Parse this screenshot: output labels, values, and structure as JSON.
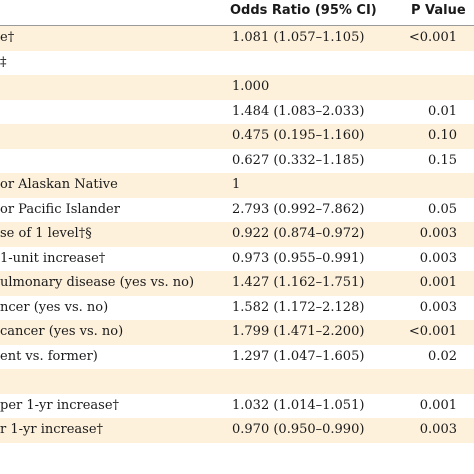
{
  "header": {
    "odds_ratio": "Odds Ratio (95% CI)",
    "p_value": "P Value"
  },
  "rows": [
    {
      "variable": "e†",
      "or_ci": "1.081 (1.057–1.105)",
      "p": "<0.001",
      "shaded": true
    },
    {
      "variable": "‡",
      "or_ci": "",
      "p": "",
      "shaded": false
    },
    {
      "variable": "",
      "or_ci": "1.000",
      "p": "",
      "shaded": true
    },
    {
      "variable": "",
      "or_ci": "1.484 (1.083–2.033)",
      "p": "0.01",
      "shaded": false
    },
    {
      "variable": "",
      "or_ci": "0.475 (0.195–1.160)",
      "p": "0.10",
      "shaded": true
    },
    {
      "variable": "",
      "or_ci": "0.627 (0.332–1.185)",
      "p": "0.15",
      "shaded": false
    },
    {
      "variable": "or Alaskan Native",
      "or_ci": "1",
      "p": "",
      "shaded": true
    },
    {
      "variable": "or Pacific Islander",
      "or_ci": "2.793 (0.992–7.862)",
      "p": "0.05",
      "shaded": false
    },
    {
      "variable": "se of 1 level†§",
      "or_ci": "0.922 (0.874–0.972)",
      "p": "0.003",
      "shaded": true
    },
    {
      "variable": "1-unit increase†",
      "or_ci": "0.973 (0.955–0.991)",
      "p": "0.003",
      "shaded": false
    },
    {
      "variable": "ulmonary disease (yes vs. no)",
      "or_ci": "1.427 (1.162–1.751)",
      "p": "0.001",
      "shaded": true
    },
    {
      "variable": "ncer (yes vs. no)",
      "or_ci": "1.582 (1.172–2.128)",
      "p": "0.003",
      "shaded": false
    },
    {
      "variable": "cancer (yes vs. no)",
      "or_ci": "1.799 (1.471–2.200)",
      "p": "<0.001",
      "shaded": true
    },
    {
      "variable": "ent vs. former)",
      "or_ci": "1.297 (1.047–1.605)",
      "p": "0.02",
      "shaded": false
    },
    {
      "variable": "",
      "or_ci": "",
      "p": "",
      "shaded": true
    },
    {
      "variable": "per 1-yr increase†",
      "or_ci": "1.032 (1.014–1.051)",
      "p": "0.001",
      "shaded": false
    },
    {
      "variable": "r 1-yr increase†",
      "or_ci": "0.970 (0.950–0.990)",
      "p": "0.003",
      "shaded": true
    }
  ]
}
